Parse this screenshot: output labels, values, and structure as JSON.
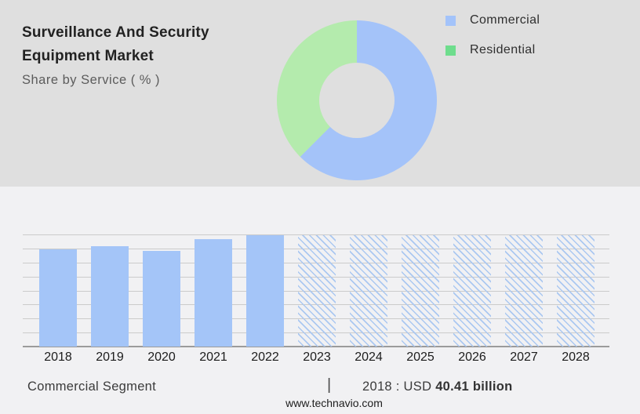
{
  "page": {
    "background_top": "#dfdfdf",
    "background_bottom": "#f1f1f3"
  },
  "header": {
    "title_line1": "Surveillance And Security",
    "title_line2": "Equipment Market",
    "subtitle": "Share by Service ( % )"
  },
  "legend": {
    "items": [
      {
        "label": "Commercial",
        "color": "#a3c3fa"
      },
      {
        "label": "Residential",
        "color": "#6edd8d"
      }
    ]
  },
  "chart_data": [
    {
      "type": "pie",
      "subtype": "donut",
      "title": "Share by Service ( % )",
      "labels": [
        "Commercial",
        "Residential"
      ],
      "values_pct": [
        62.5,
        37.5
      ],
      "slice_colors": [
        "#a4c3f9",
        "#b4ebad"
      ],
      "start_angle_deg": 0,
      "direction": "clockwise",
      "legend_position": "top-right"
    },
    {
      "type": "bar",
      "title": "Commercial Segment market size by year",
      "categories": [
        "2018",
        "2019",
        "2020",
        "2021",
        "2022",
        "2023",
        "2024",
        "2025",
        "2026",
        "2027",
        "2028"
      ],
      "relative_heights": [
        0.867,
        0.895,
        0.853,
        0.958,
        0.993,
        0.993,
        0.993,
        0.993,
        0.993,
        0.993,
        0.993
      ],
      "bar_styles": [
        "solid",
        "solid",
        "solid",
        "solid",
        "solid",
        "hatched",
        "hatched",
        "hatched",
        "hatched",
        "hatched",
        "hatched"
      ],
      "values_usd_billion_est": [
        40.41,
        41.7,
        39.8,
        44.6,
        46.3,
        null,
        null,
        null,
        null,
        null,
        null
      ],
      "known_value_label": "2018 : USD 40.41 billion",
      "bar_color": "#a4c5f8",
      "hatch_color": "#abc8f1",
      "grid": true,
      "gridline_count": 9,
      "xlabel": "",
      "ylabel": ""
    }
  ],
  "footer": {
    "segment_label": "Commercial Segment",
    "separator": "|",
    "value_prefix": "2018 : USD",
    "value_bold": "40.41 billion",
    "website": "www.technavio.com"
  }
}
